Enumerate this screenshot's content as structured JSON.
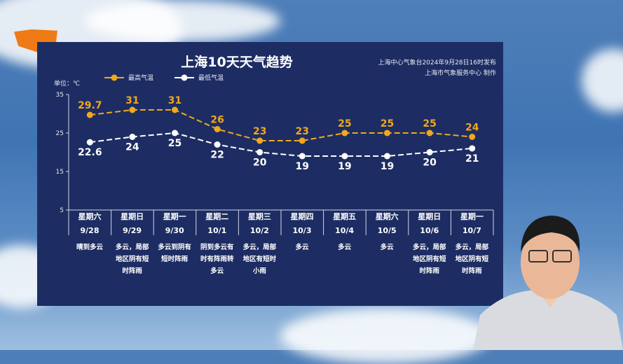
{
  "header": {
    "title": "上海10天天气趋势",
    "source_line1": "上海中心气象台2024年9月28日16时发布",
    "source_line2": "上海市气象服务中心 制作",
    "unit": "单位：℃"
  },
  "colors": {
    "high": "#f0a81c",
    "low": "#ffffff",
    "panel": "#1d2d63"
  },
  "chart_data": {
    "type": "line",
    "title": "上海10天天气趋势",
    "ylabel": "单位：℃",
    "ylim": [
      5,
      35
    ],
    "yticks": [
      5,
      15,
      25,
      35
    ],
    "grid": false,
    "legend": "top-left",
    "categories": [
      "9/28",
      "9/29",
      "9/30",
      "10/1",
      "10/2",
      "10/3",
      "10/4",
      "10/5",
      "10/6",
      "10/7"
    ],
    "weekdays": [
      "星期六",
      "星期日",
      "星期一",
      "星期二",
      "星期三",
      "星期四",
      "星期五",
      "星期六",
      "星期日",
      "星期一"
    ],
    "weather": [
      "晴到多云",
      "多云，局部地区阴有短时阵雨",
      "多云到阴有短时阵雨",
      "阴到多云有时有阵雨转多云",
      "多云，局部地区有短时小雨",
      "多云",
      "多云",
      "多云",
      "多云，局部地区阴有短时阵雨",
      "多云，局部地区阴有短时阵雨"
    ],
    "series": [
      {
        "name": "最高气温",
        "values": [
          29.7,
          31,
          31,
          26,
          23,
          23,
          25,
          25,
          25,
          24
        ]
      },
      {
        "name": "最低气温",
        "values": [
          22.6,
          24,
          25,
          22,
          20,
          19,
          19,
          19,
          20,
          21
        ]
      }
    ]
  }
}
